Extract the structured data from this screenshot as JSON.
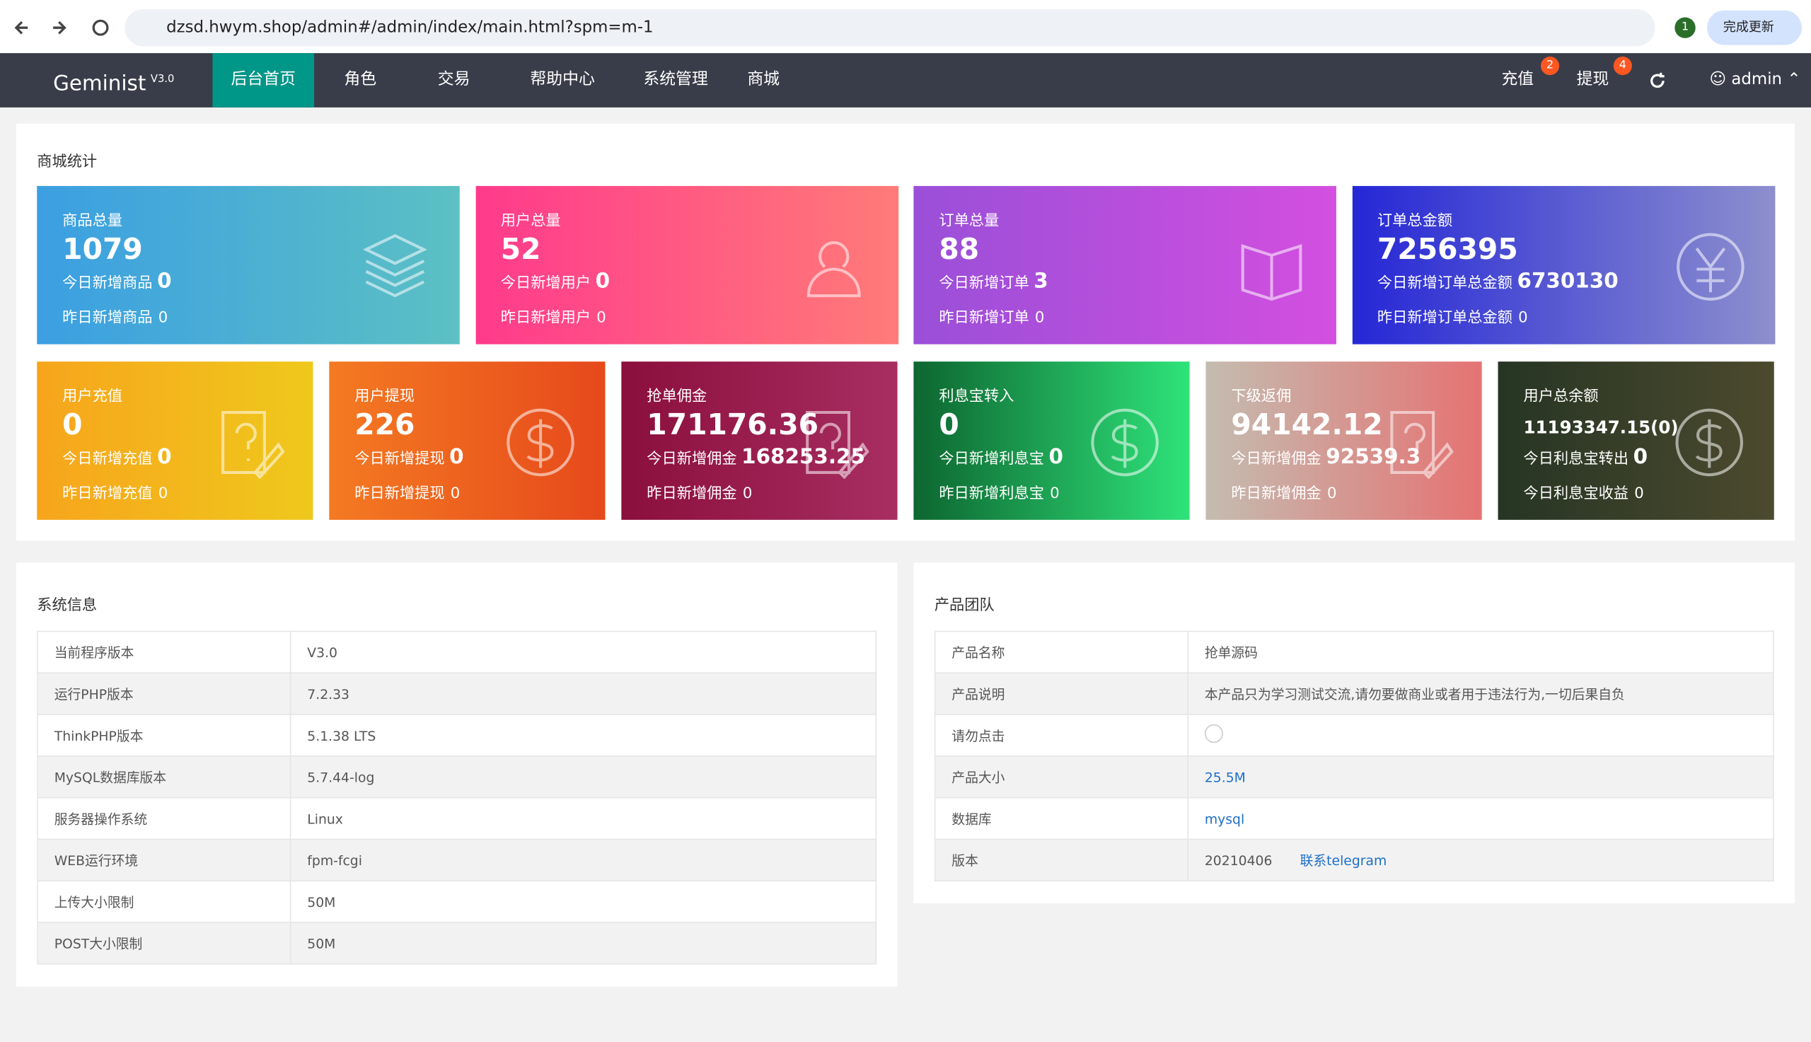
{
  "browser": {
    "url": "dzsd.hwym.shop/admin#/admin/index/main.html?spm=m-1",
    "profile": "1",
    "update": "完成更新"
  },
  "nav": {
    "brand": "Geminist",
    "version": "V3.0",
    "items": [
      "后台首页",
      "角色",
      "交易",
      "帮助中心",
      "系统管理",
      "商城"
    ],
    "recharge": {
      "label": "充值",
      "badge": "2"
    },
    "withdraw": {
      "label": "提现",
      "badge": "4"
    },
    "user": "admin"
  },
  "stats": {
    "title": "商城统计",
    "cards": [
      {
        "title": "商品总量",
        "value": 1079,
        "today_label": "今日新增商品",
        "today_value": 0,
        "yesterday_label": "昨日新增商品",
        "yesterday_value": 0
      },
      {
        "title": "用户总量",
        "value": 52,
        "today_label": "今日新增用户",
        "today_value": 0,
        "yesterday_label": "昨日新增用户",
        "yesterday_value": 0
      },
      {
        "title": "订单总量",
        "value": 88,
        "today_label": "今日新增订单",
        "today_value": 3,
        "yesterday_label": "昨日新增订单",
        "yesterday_value": 0
      },
      {
        "title": "订单总金额",
        "value": 7256395,
        "today_label": "今日新增订单总金额",
        "today_value": 6730130,
        "yesterday_label": "昨日新增订单总金额",
        "yesterday_value": 0
      },
      {
        "title": "用户充值",
        "value": 0,
        "today_label": "今日新增充值",
        "today_value": 0,
        "yesterday_label": "昨日新增充值",
        "yesterday_value": 0
      },
      {
        "title": "用户提现",
        "value": 226,
        "today_label": "今日新增提现",
        "today_value": 0,
        "yesterday_label": "昨日新增提现",
        "yesterday_value": 0
      },
      {
        "title": "抢单佣金",
        "value": 171176.36,
        "today_label": "今日新增佣金",
        "today_value": 168253.25,
        "yesterday_label": "昨日新增佣金",
        "yesterday_value": 0
      },
      {
        "title": "利息宝转入",
        "value": 0,
        "today_label": "今日新增利息宝",
        "today_value": 0,
        "yesterday_label": "昨日新增利息宝",
        "yesterday_value": 0
      },
      {
        "title": "下级返佣",
        "value": 94142.12,
        "today_label": "今日新增佣金",
        "today_value": 92539.3,
        "yesterday_label": "昨日新增佣金",
        "yesterday_value": 0
      },
      {
        "title": "用户总余额",
        "value": "11193347.15(0)",
        "today_label": "今日利息宝转出",
        "today_value": 0,
        "yesterday_label": "今日利息宝收益",
        "yesterday_value": 0
      }
    ]
  },
  "system_info": {
    "title": "系统信息",
    "rows": [
      [
        "当前程序版本",
        "V3.0"
      ],
      [
        "运行PHP版本",
        "7.2.33"
      ],
      [
        "ThinkPHP版本",
        "5.1.38 LTS"
      ],
      [
        "MySQL数据库版本",
        "5.7.44-log"
      ],
      [
        "服务器操作系统",
        "Linux"
      ],
      [
        "WEB运行环境",
        "fpm-fcgi"
      ],
      [
        "上传大小限制",
        "50M"
      ],
      [
        "POST大小限制",
        "50M"
      ]
    ]
  },
  "product_team": {
    "title": "产品团队",
    "rows": [
      [
        "产品名称",
        "抢单源码"
      ],
      [
        "产品说明",
        "本产品只为学习测试交流,请勿要做商业或者用于违法行为,一切后果自负"
      ],
      [
        "请勿点击",
        ""
      ],
      [
        "产品大小",
        "25.5M"
      ],
      [
        "数据库",
        "mysql"
      ],
      [
        "版本",
        "20210406",
        "联系telegram"
      ]
    ]
  }
}
